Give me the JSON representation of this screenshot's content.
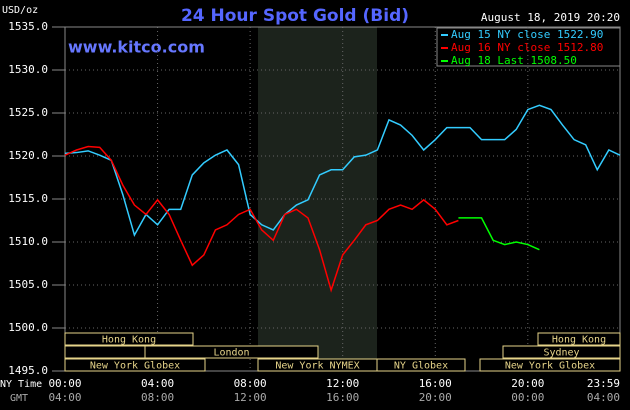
{
  "chart_data": {
    "type": "line",
    "title": "24 Hour Spot Gold (Bid)",
    "timestamp": "August 18, 2019 20:20",
    "watermark": "www.kitco.com",
    "y_label": "USD/oz",
    "x_label": "NY Time",
    "x2_label": "GMT",
    "x": [
      0,
      0.5,
      1,
      1.5,
      2,
      2.5,
      3,
      3.5,
      4,
      4.5,
      5,
      5.5,
      6,
      6.5,
      7,
      7.5,
      8,
      8.5,
      9,
      9.5,
      10,
      10.5,
      11,
      11.5,
      12,
      12.5,
      13,
      13.5,
      14,
      14.5,
      15,
      15.5,
      16,
      16.5,
      17,
      17.5,
      18,
      18.5,
      19,
      19.5,
      20,
      20.5,
      21,
      21.5,
      22,
      22.5,
      23,
      23.5,
      23.983
    ],
    "series": [
      {
        "name": "Aug 15 NY close 1522.90",
        "color": "#33ccff",
        "values": [
          1520.3,
          1520.4,
          1520.6,
          1520.1,
          1519.5,
          1515.5,
          1510.8,
          1513.2,
          1512,
          1513.8,
          1513.8,
          1517.8,
          1519.2,
          1520.1,
          1520.7,
          1519,
          1513.2,
          1512,
          1511.4,
          1513.2,
          1514.3,
          1514.9,
          1517.8,
          1518.4,
          1518.4,
          1519.9,
          1520.1,
          1520.7,
          1524.2,
          1523.6,
          1522.4,
          1520.7,
          1521.9,
          1523.3,
          1523.3,
          1523.3,
          1521.9,
          1521.9,
          1521.9,
          1523.1,
          1525.4,
          1525.9,
          1525.4,
          1523.6,
          1521.9,
          1521.3,
          1518.4,
          1520.7,
          1520.1
        ]
      },
      {
        "name": "Aug 16 NY close 1512.80",
        "color": "#ff0000",
        "values": [
          1520.1,
          1520.7,
          1521.1,
          1521,
          1519.5,
          1516.6,
          1514.3,
          1513.2,
          1514.9,
          1513.2,
          1510.2,
          1507.3,
          1508.5,
          1511.4,
          1512,
          1513.2,
          1513.8,
          1511.4,
          1510.2,
          1513.2,
          1513.8,
          1512.8,
          1509.1,
          1504.4,
          1508.5,
          1510.2,
          1512,
          1512.5,
          1513.8,
          1514.3,
          1513.8,
          1514.9,
          1513.8,
          1512,
          1512.5,
          null,
          null,
          null,
          null,
          null,
          null,
          null,
          null,
          null,
          null,
          null,
          null,
          null,
          null
        ]
      },
      {
        "name": "Aug 18 Last 1508.50",
        "color": "#00ff00",
        "values": [
          null,
          null,
          null,
          null,
          null,
          null,
          null,
          null,
          null,
          null,
          null,
          null,
          null,
          null,
          null,
          null,
          null,
          null,
          null,
          null,
          null,
          null,
          null,
          null,
          null,
          null,
          null,
          null,
          null,
          null,
          null,
          null,
          null,
          null,
          1512.8,
          1512.8,
          1512.8,
          1510.2,
          1509.7,
          1510,
          1509.7,
          1509.1,
          null,
          null,
          null,
          null,
          null,
          null,
          null
        ]
      }
    ],
    "xlim": [
      0,
      23.983
    ],
    "xticks": [
      {
        "value": 0,
        "label": "00:00"
      },
      {
        "value": 4,
        "label": "04:00"
      },
      {
        "value": 8,
        "label": "08:00"
      },
      {
        "value": 12,
        "label": "12:00"
      },
      {
        "value": 16,
        "label": "16:00"
      },
      {
        "value": 20,
        "label": "20:00"
      },
      {
        "value": 23.983,
        "label": "23:59"
      }
    ],
    "x2ticks": [
      {
        "value": 0,
        "label": "04:00"
      },
      {
        "value": 4,
        "label": "08:00"
      },
      {
        "value": 8,
        "label": "12:00"
      },
      {
        "value": 12,
        "label": "16:00"
      },
      {
        "value": 16,
        "label": "20:00"
      },
      {
        "value": 20,
        "label": "00:00"
      },
      {
        "value": 23.983,
        "label": "04:00"
      }
    ],
    "ylim": [
      1495,
      1535
    ],
    "yticks": [
      {
        "value": 1495,
        "label": "1495.0"
      },
      {
        "value": 1500,
        "label": "1500.0"
      },
      {
        "value": 1505,
        "label": "1505.0"
      },
      {
        "value": 1510,
        "label": "1510.0"
      },
      {
        "value": 1515,
        "label": "1515.0"
      },
      {
        "value": 1520,
        "label": "1520.0"
      },
      {
        "value": 1525,
        "label": "1525.0"
      },
      {
        "value": 1530,
        "label": "1530.0"
      },
      {
        "value": 1535,
        "label": "1535.0"
      }
    ],
    "grid": true,
    "sessions": [
      "Hong Kong",
      "London",
      "New York Globex",
      "New York NYMEX",
      "NY Globex",
      "Hong Kong",
      "Sydney",
      "New York Globex"
    ]
  }
}
